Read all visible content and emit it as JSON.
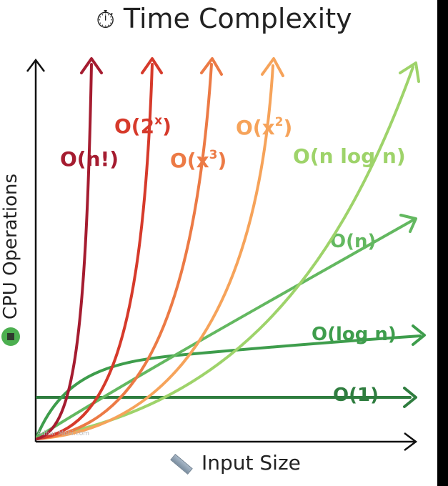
{
  "title": {
    "icon": "stopwatch-icon",
    "text": "Time Complexity"
  },
  "axes": {
    "x_label": "Input Size",
    "x_icon": "ruler-icon",
    "y_label": "CPU Operations",
    "y_icon": "cpu-chip-icon"
  },
  "watermark": "Adhar Mohi.com",
  "curves": [
    {
      "label": "O(n!)",
      "color": "#a51c30"
    },
    {
      "label_base": "O(2",
      "label_sup": "x",
      "label_close": ")",
      "color": "#d63a2b"
    },
    {
      "label_base": "O(x",
      "label_sup": "3",
      "label_close": ")",
      "color": "#ec7a45"
    },
    {
      "label_base": "O(x",
      "label_sup": "2",
      "label_close": ")",
      "color": "#f6a35a"
    },
    {
      "label": "O(n log n)",
      "color": "#9ed36a"
    },
    {
      "label": "O(n)",
      "color": "#63b860"
    },
    {
      "label": "O(log n)",
      "color": "#3e9d4c"
    },
    {
      "label": "O(1)",
      "color": "#2f7d3f"
    }
  ]
}
